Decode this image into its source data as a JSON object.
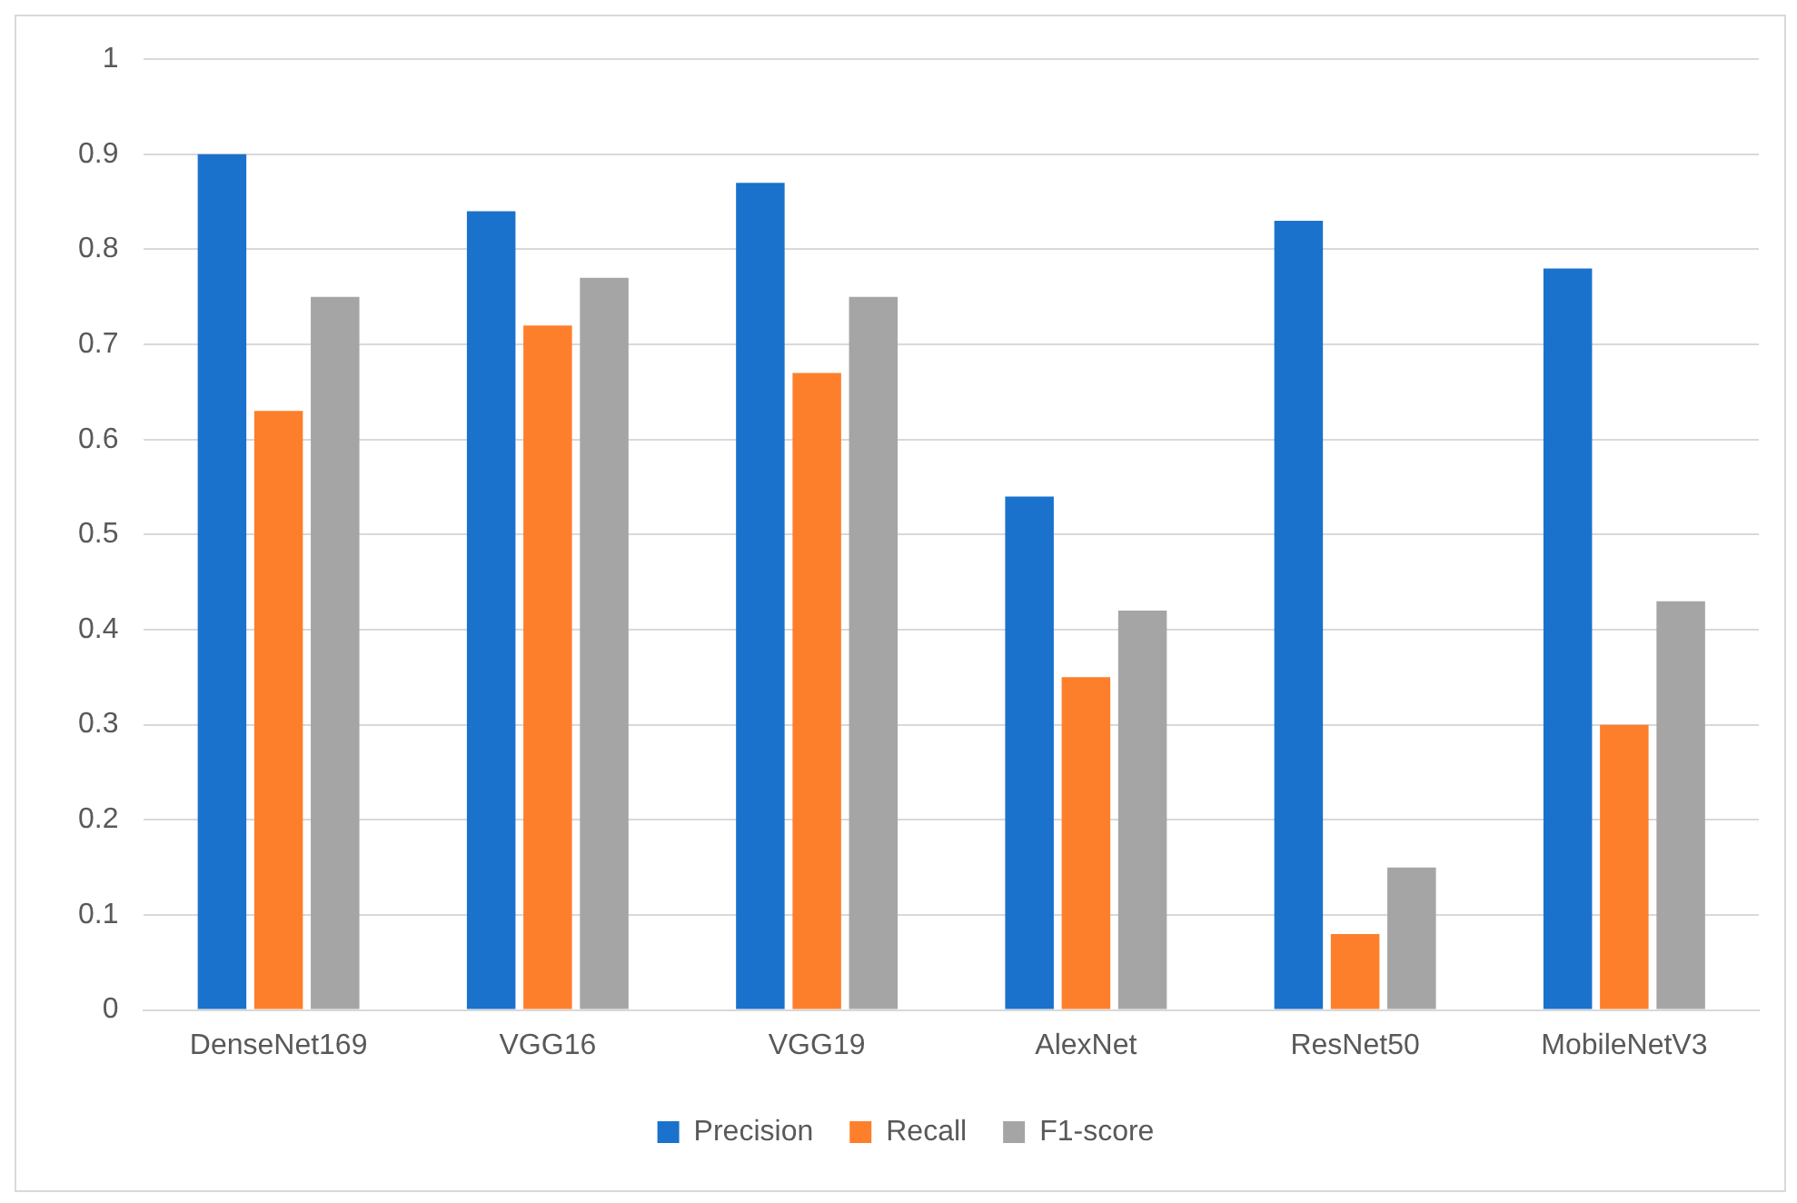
{
  "chart_data": {
    "type": "bar",
    "categories": [
      "DenseNet169",
      "VGG16",
      "VGG19",
      "AlexNet",
      "ResNet50",
      "MobileNetV3"
    ],
    "series": [
      {
        "name": "Precision",
        "color": "#1a72cc",
        "values": [
          0.9,
          0.84,
          0.87,
          0.54,
          0.83,
          0.78
        ]
      },
      {
        "name": "Recall",
        "color": "#fd7f2b",
        "values": [
          0.63,
          0.72,
          0.67,
          0.35,
          0.08,
          0.3
        ]
      },
      {
        "name": "F1-score",
        "color": "#a5a5a5",
        "values": [
          0.75,
          0.77,
          0.75,
          0.42,
          0.15,
          0.43
        ]
      }
    ],
    "ylim": [
      0,
      1
    ],
    "yticks": [
      0,
      0.1,
      0.2,
      0.3,
      0.4,
      0.5,
      0.6,
      0.7,
      0.8,
      0.9,
      1
    ],
    "grid": "y",
    "legend": "bottom"
  }
}
